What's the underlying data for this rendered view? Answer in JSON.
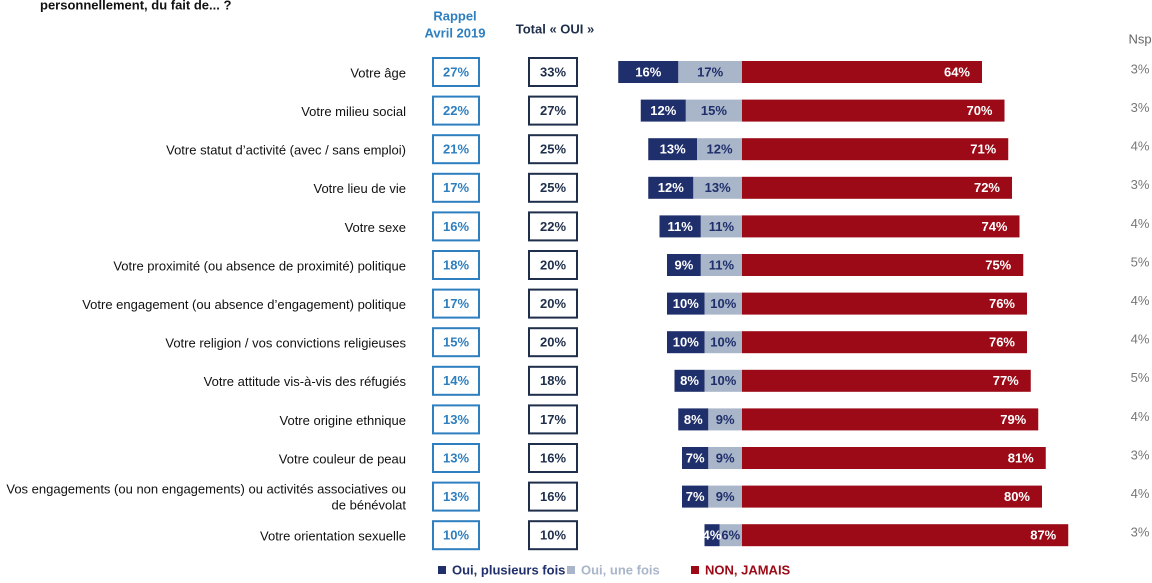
{
  "chart_data": {
    "type": "diverging-stacked-bar",
    "title": "personnellement, du fait de... ?",
    "categories": [
      "Votre âge",
      "Votre milieu social",
      "Votre statut d’activité (avec / sans emploi)",
      "Votre lieu de vie",
      "Votre sexe",
      "Votre proximité (ou absence de proximité) politique",
      "Votre engagement (ou absence d’engagement) politique",
      "Votre religion / vos convictions religieuses",
      "Votre attitude vis-à-vis des réfugiés",
      "Votre origine ethnique",
      "Votre couleur de peau",
      "Vos engagements (ou non engagements) ou activités associatives ou\nde bénévolat",
      "Votre orientation sexuelle"
    ],
    "rappel": {
      "header": [
        "Rappel",
        "Avril 2019"
      ],
      "values": [
        27,
        22,
        21,
        17,
        16,
        18,
        17,
        15,
        14,
        13,
        13,
        13,
        10
      ],
      "value_labels": [
        "27%",
        "22%",
        "21%",
        "17%",
        "16%",
        "18%",
        "17%",
        "15%",
        "14%",
        "13%",
        "13%",
        "13%",
        "10%"
      ],
      "color": "#2e7fc0"
    },
    "total": {
      "header": "Total « OUI »",
      "values": [
        33,
        27,
        25,
        25,
        22,
        20,
        20,
        20,
        18,
        17,
        16,
        16,
        10
      ],
      "value_labels": [
        "33%",
        "27%",
        "25%",
        "25%",
        "22%",
        "20%",
        "20%",
        "20%",
        "18%",
        "17%",
        "16%",
        "16%",
        "10%"
      ],
      "color": "#1f2f4b"
    },
    "series": [
      {
        "name": "Oui, plusieurs fois",
        "color": "#1f2f6b",
        "side": "left",
        "values": [
          16,
          12,
          13,
          12,
          11,
          9,
          10,
          10,
          8,
          8,
          7,
          7,
          4
        ],
        "value_labels": [
          "16%",
          "12%",
          "13%",
          "12%",
          "11%",
          "9%",
          "10%",
          "10%",
          "8%",
          "8%",
          "7%",
          "7%",
          "4%"
        ]
      },
      {
        "name": "Oui, une fois",
        "color": "#a9b5c9",
        "side": "left",
        "values": [
          17,
          15,
          12,
          13,
          11,
          11,
          10,
          10,
          10,
          9,
          9,
          9,
          6
        ],
        "value_labels": [
          "17%",
          "15%",
          "12%",
          "13%",
          "11%",
          "11%",
          "10%",
          "10%",
          "10%",
          "9%",
          "9%",
          "9%",
          "6%"
        ]
      },
      {
        "name": "NON, JAMAIS",
        "color": "#9b0a16",
        "side": "right",
        "values": [
          64,
          70,
          71,
          72,
          74,
          75,
          76,
          76,
          77,
          79,
          81,
          80,
          87
        ],
        "value_labels": [
          "64%",
          "70%",
          "71%",
          "72%",
          "74%",
          "75%",
          "76%",
          "76%",
          "77%",
          "79%",
          "81%",
          "80%",
          "87%"
        ]
      }
    ],
    "nsp": {
      "header": "Nsp",
      "values": [
        3,
        3,
        4,
        3,
        4,
        5,
        4,
        4,
        5,
        4,
        3,
        4,
        3
      ],
      "value_labels": [
        "3%",
        "3%",
        "4%",
        "3%",
        "4%",
        "5%",
        "4%",
        "4%",
        "5%",
        "4%",
        "3%",
        "4%",
        "3%"
      ]
    }
  }
}
